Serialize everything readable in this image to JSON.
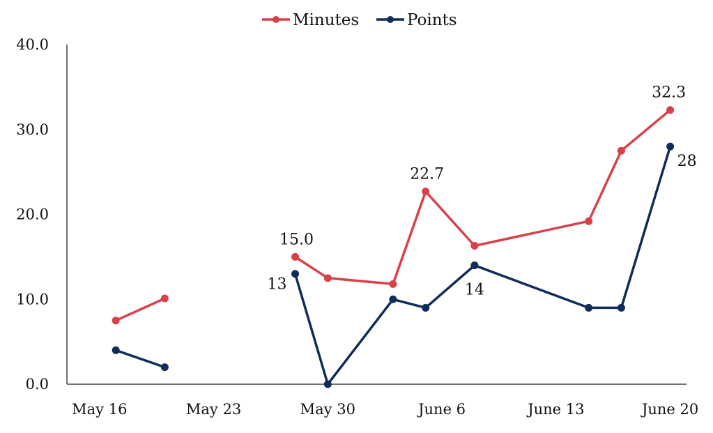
{
  "chart_data": {
    "type": "line",
    "title": "",
    "xlabel": "",
    "ylabel": "",
    "ylim": [
      0,
      40
    ],
    "yticks": [
      "0.0",
      "10.0",
      "20.0",
      "30.0",
      "40.0"
    ],
    "xticks": [
      {
        "label": "May 16",
        "date": "2021-05-16"
      },
      {
        "label": "May 23",
        "date": "2021-05-23"
      },
      {
        "label": "May 30",
        "date": "2021-05-30"
      },
      {
        "label": "June 6",
        "date": "2021-06-06"
      },
      {
        "label": "June 13",
        "date": "2021-06-13"
      },
      {
        "label": "June 20",
        "date": "2021-06-20"
      }
    ],
    "xlim": [
      "2021-05-14",
      "2021-06-21"
    ],
    "grid": false,
    "legend": "top-center",
    "series": [
      {
        "name": "Minutes",
        "color": "#d9414a",
        "segments": [
          [
            [
              "2021-05-17",
              7.5
            ],
            [
              "2021-05-20",
              10.1
            ]
          ],
          [
            [
              "2021-05-28",
              15.0
            ],
            [
              "2021-05-30",
              12.5
            ],
            [
              "2021-06-03",
              11.8
            ],
            [
              "2021-06-05",
              22.7
            ],
            [
              "2021-06-08",
              16.3
            ],
            [
              "2021-06-15",
              19.2
            ],
            [
              "2021-06-17",
              27.5
            ],
            [
              "2021-06-20",
              32.3
            ]
          ]
        ],
        "labels": [
          {
            "date": "2021-05-28",
            "text": "15.0"
          },
          {
            "date": "2021-06-05",
            "text": "22.7"
          },
          {
            "date": "2021-06-20",
            "text": "32.3"
          }
        ]
      },
      {
        "name": "Points",
        "color": "#0f2c5a",
        "segments": [
          [
            [
              "2021-05-17",
              4
            ],
            [
              "2021-05-20",
              2
            ]
          ],
          [
            [
              "2021-05-28",
              13
            ],
            [
              "2021-05-30",
              0
            ],
            [
              "2021-06-03",
              10
            ],
            [
              "2021-06-05",
              9
            ],
            [
              "2021-06-08",
              14
            ],
            [
              "2021-06-15",
              9
            ],
            [
              "2021-06-17",
              9
            ],
            [
              "2021-06-20",
              28
            ]
          ]
        ],
        "labels": [
          {
            "date": "2021-05-28",
            "text": "13"
          },
          {
            "date": "2021-06-08",
            "text": "14"
          },
          {
            "date": "2021-06-20",
            "text": "28"
          }
        ]
      }
    ]
  }
}
